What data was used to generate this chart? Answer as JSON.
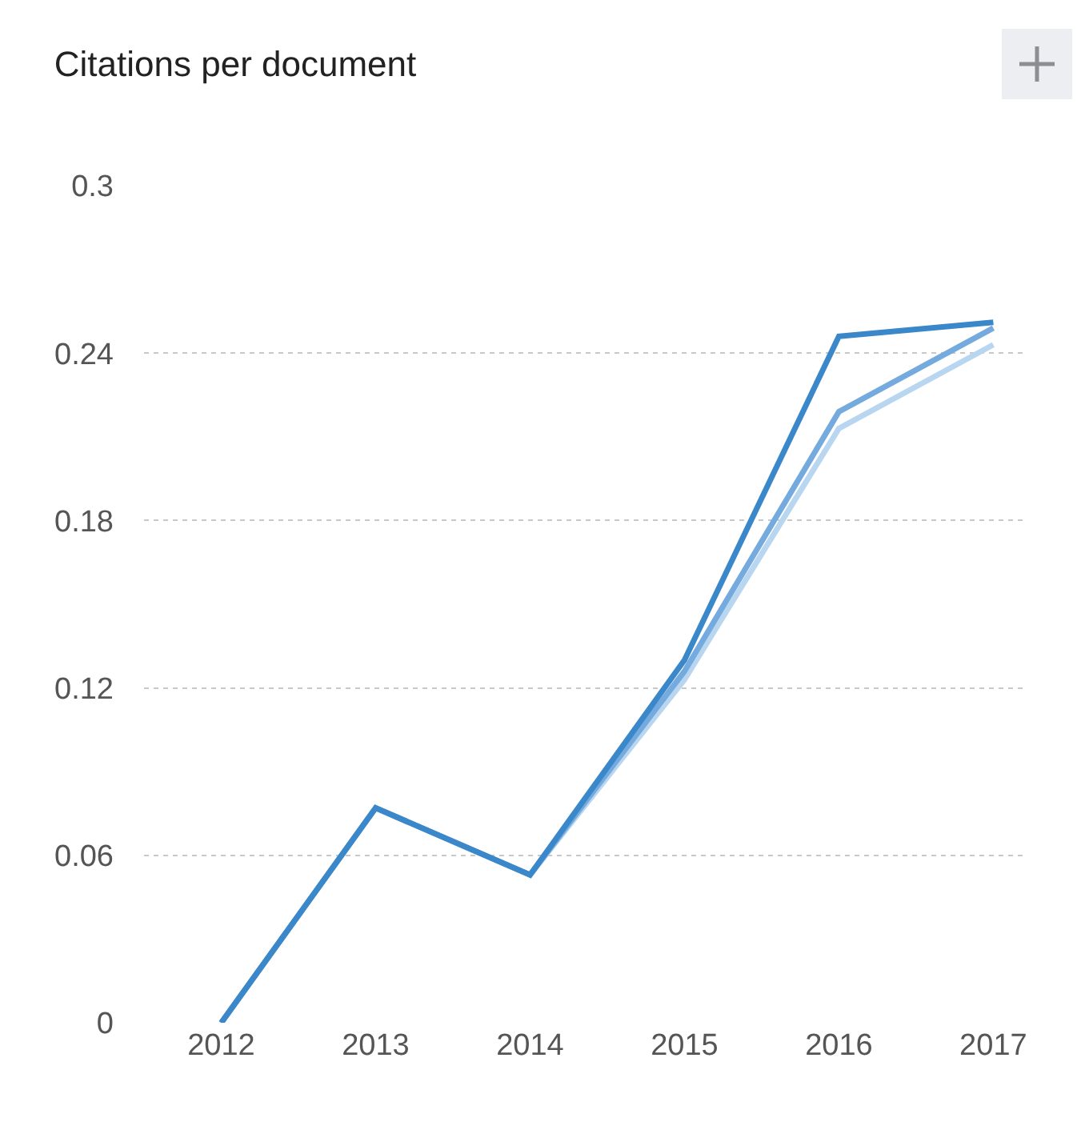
{
  "chart_data": {
    "type": "line",
    "title": "Citations per document",
    "x": [
      2012,
      2013,
      2014,
      2015,
      2016,
      2017
    ],
    "series": [
      {
        "color": "#b9d6f0",
        "values": [
          0,
          0.077,
          0.053,
          0.123,
          0.213,
          0.243
        ]
      },
      {
        "color": "#74aade",
        "values": [
          0,
          0.077,
          0.053,
          0.126,
          0.219,
          0.249
        ]
      },
      {
        "color": "#3a87c9",
        "values": [
          0,
          0.077,
          0.053,
          0.13,
          0.246,
          0.251
        ]
      }
    ],
    "xlim": [
      2011.5,
      2017.2
    ],
    "xticks": [
      2012,
      2013,
      2014,
      2015,
      2016,
      2017
    ],
    "ylim": [
      0,
      0.3
    ],
    "yticks": [
      0,
      0.06,
      0.12,
      0.18,
      0.24,
      0.3
    ],
    "grid": "y",
    "legend": false,
    "marker": "none",
    "line_style": "solid"
  }
}
